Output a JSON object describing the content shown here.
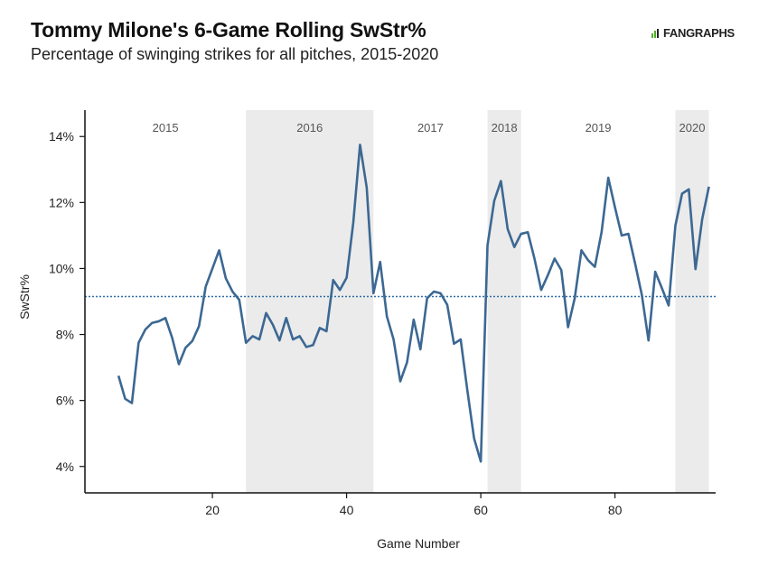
{
  "title": "Tommy Milone's 6-Game Rolling SwStr%",
  "subtitle": "Percentage of swinging strikes for all pitches, 2015-2020",
  "logo": {
    "text": "FANGRAPHS",
    "icon": "fangraphs-logo-icon",
    "color": "#50ae26"
  },
  "chart_data": {
    "type": "line",
    "title": "Tommy Milone's 6-Game Rolling SwStr%",
    "xlabel": "Game Number",
    "ylabel": "SwStr%",
    "xlim": [
      1,
      95
    ],
    "ylim": [
      3.2,
      14.8
    ],
    "x_ticks": [
      20,
      40,
      60,
      80
    ],
    "y_ticks": [
      4,
      6,
      8,
      10,
      12,
      14
    ],
    "y_tick_labels": [
      "4%",
      "6%",
      "8%",
      "10%",
      "12%",
      "14%"
    ],
    "reference_line": {
      "value": 9.15,
      "style": "dotted",
      "color": "#2f6ea8"
    },
    "seasons": [
      {
        "label": "2015",
        "start": 1,
        "end": 25,
        "shaded": false
      },
      {
        "label": "2016",
        "start": 25,
        "end": 44,
        "shaded": true
      },
      {
        "label": "2017",
        "start": 44,
        "end": 61,
        "shaded": false
      },
      {
        "label": "2018",
        "start": 61,
        "end": 66,
        "shaded": true
      },
      {
        "label": "2019",
        "start": 66,
        "end": 89,
        "shaded": false
      },
      {
        "label": "2020",
        "start": 89,
        "end": 94,
        "shaded": true
      }
    ],
    "series": [
      {
        "color": "#3c6893",
        "x": [
          6,
          7,
          8,
          9,
          10,
          11,
          12,
          13,
          14,
          15,
          16,
          17,
          18,
          19,
          20,
          21,
          22,
          23,
          24,
          25,
          26,
          27,
          28,
          29,
          30,
          31,
          32,
          33,
          34,
          35,
          36,
          37,
          38,
          39,
          40,
          41,
          42,
          43,
          44,
          45,
          46,
          47,
          48,
          49,
          50,
          51,
          52,
          53,
          54,
          55,
          56,
          57,
          58,
          59,
          60,
          61,
          62,
          63,
          64,
          65,
          66,
          67,
          68,
          69,
          70,
          71,
          72,
          73,
          74,
          75,
          76,
          77,
          78,
          79,
          80,
          81,
          82,
          83,
          84,
          85,
          86,
          87,
          88,
          89,
          90,
          91,
          92,
          93,
          94
        ],
        "y": [
          6.75,
          6.05,
          5.92,
          7.75,
          8.15,
          8.35,
          8.4,
          8.5,
          7.9,
          7.1,
          7.6,
          7.8,
          8.25,
          9.45,
          10.0,
          10.55,
          9.7,
          9.3,
          9.05,
          7.75,
          7.95,
          7.85,
          8.65,
          8.3,
          7.82,
          8.5,
          7.85,
          7.95,
          7.62,
          7.68,
          8.2,
          8.1,
          9.65,
          9.35,
          9.72,
          11.4,
          13.75,
          12.45,
          9.25,
          10.2,
          8.55,
          7.85,
          6.58,
          7.15,
          8.45,
          7.55,
          9.1,
          9.3,
          9.25,
          8.9,
          7.72,
          7.85,
          6.3,
          4.85,
          4.15,
          10.7,
          12.05,
          12.65,
          11.2,
          10.65,
          11.05,
          11.1,
          10.3,
          9.35,
          9.8,
          10.3,
          9.95,
          8.22,
          9.1,
          10.55,
          10.25,
          10.05,
          11.1,
          12.75,
          11.85,
          11.0,
          11.05,
          10.15,
          9.2,
          7.82,
          9.9,
          9.4,
          8.88,
          11.3,
          12.27,
          12.4,
          9.98,
          11.5,
          12.48
        ]
      }
    ]
  }
}
